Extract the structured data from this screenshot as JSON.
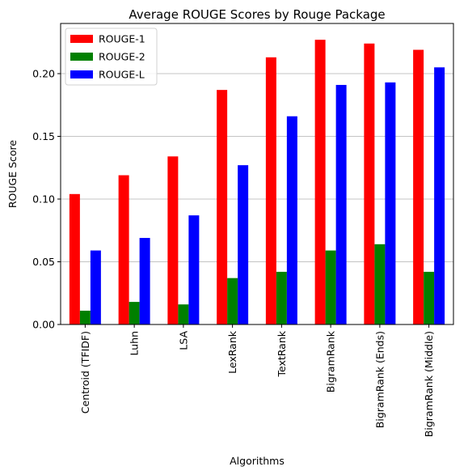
{
  "chart_data": {
    "type": "bar",
    "title": "Average ROUGE Scores by Rouge Package",
    "xlabel": "Algorithms",
    "ylabel": "ROUGE Score",
    "categories": [
      "Centroid (TFIDF)",
      "Luhn",
      "LSA",
      "LexRank",
      "TextRank",
      "BigramRank",
      "BigramRank (Ends)",
      "BigramRank (Middle)"
    ],
    "series": [
      {
        "name": "ROUGE-1",
        "color": "#ff0000",
        "values": [
          0.104,
          0.119,
          0.134,
          0.187,
          0.213,
          0.227,
          0.224,
          0.219
        ]
      },
      {
        "name": "ROUGE-2",
        "color": "#008000",
        "values": [
          0.011,
          0.018,
          0.016,
          0.037,
          0.042,
          0.059,
          0.064,
          0.042
        ]
      },
      {
        "name": "ROUGE-L",
        "color": "#0000ff",
        "values": [
          0.059,
          0.069,
          0.087,
          0.127,
          0.166,
          0.191,
          0.193,
          0.205
        ]
      }
    ],
    "ylim": [
      0,
      0.24
    ],
    "yticks": [
      0.0,
      0.05,
      0.1,
      0.15,
      0.2
    ],
    "ytick_labels": [
      "0.00",
      "0.05",
      "0.10",
      "0.15",
      "0.20"
    ],
    "grid": "y",
    "legend_position": "top-left"
  }
}
